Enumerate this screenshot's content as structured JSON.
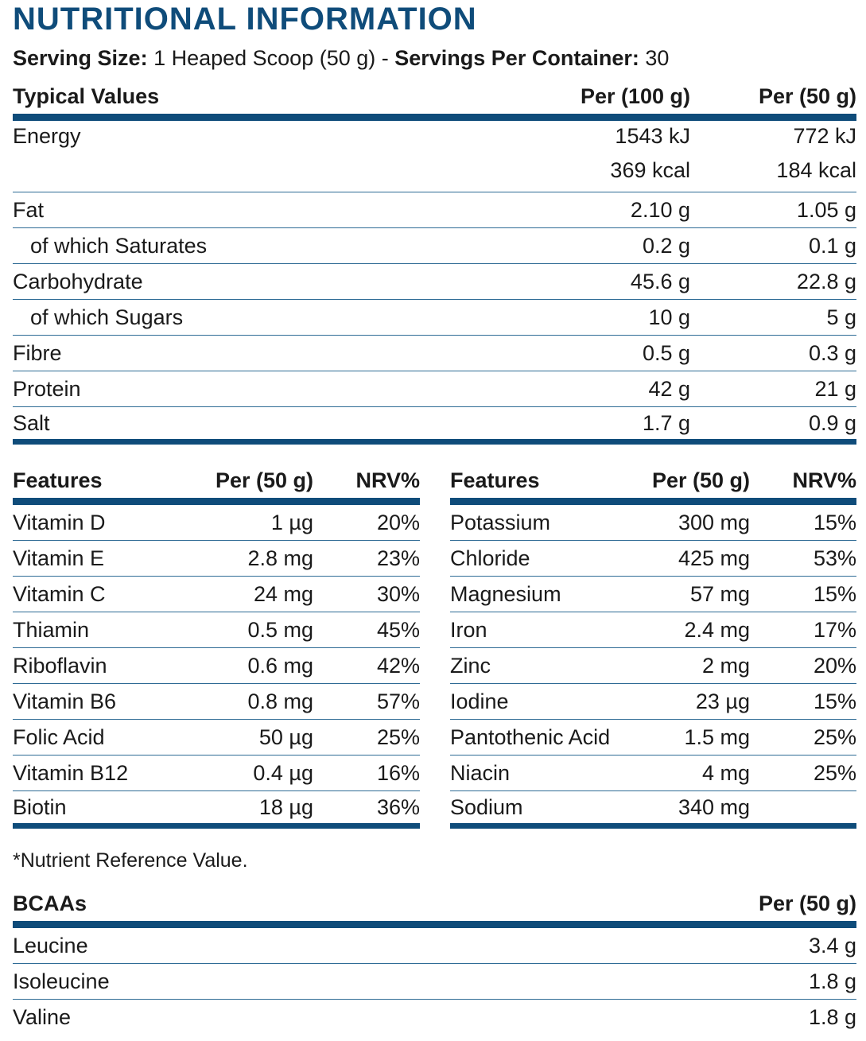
{
  "title": "NUTRITIONAL INFORMATION",
  "serving": {
    "size_label": "Serving Size:",
    "size_value": " 1 Heaped Scoop (50 g) - ",
    "per_container_label": "Servings Per Container:",
    "per_container_value": " 30"
  },
  "main_table": {
    "headers": [
      "Typical Values",
      "Per (100 g)",
      "Per (50 g)"
    ],
    "energy": {
      "label": "Energy",
      "per100": [
        "1543 kJ",
        "369 kcal"
      ],
      "per50": [
        "772 kJ",
        "184 kcal"
      ]
    },
    "rows": [
      {
        "label": "Fat",
        "per100": "2.10 g",
        "per50": "1.05 g",
        "indent": false
      },
      {
        "label": "of which Saturates",
        "per100": "0.2 g",
        "per50": "0.1 g",
        "indent": true
      },
      {
        "label": "Carbohydrate",
        "per100": "45.6 g",
        "per50": "22.8 g",
        "indent": false
      },
      {
        "label": "of which Sugars",
        "per100": "10 g",
        "per50": "5 g",
        "indent": true
      },
      {
        "label": "Fibre",
        "per100": "0.5 g",
        "per50": "0.3 g",
        "indent": false
      },
      {
        "label": "Protein",
        "per100": "42 g",
        "per50": "21 g",
        "indent": false
      },
      {
        "label": "Salt",
        "per100": "1.7 g",
        "per50": "0.9 g",
        "indent": false
      }
    ]
  },
  "features_left": {
    "headers": [
      "Features",
      "Per (50 g)",
      "NRV%"
    ],
    "rows": [
      [
        "Vitamin D",
        "1 µg",
        "20%"
      ],
      [
        "Vitamin E",
        "2.8 mg",
        "23%"
      ],
      [
        "Vitamin C",
        "24 mg",
        "30%"
      ],
      [
        "Thiamin",
        "0.5 mg",
        "45%"
      ],
      [
        "Riboflavin",
        "0.6 mg",
        "42%"
      ],
      [
        "Vitamin B6",
        "0.8 mg",
        "57%"
      ],
      [
        "Folic Acid",
        "50 µg",
        "25%"
      ],
      [
        "Vitamin B12",
        "0.4 µg",
        "16%"
      ],
      [
        "Biotin",
        "18 µg",
        "36%"
      ]
    ]
  },
  "features_right": {
    "headers": [
      "Features",
      "Per (50 g)",
      "NRV%"
    ],
    "rows": [
      [
        "Potassium",
        "300 mg",
        "15%"
      ],
      [
        "Chloride",
        "425 mg",
        "53%"
      ],
      [
        "Magnesium",
        "57 mg",
        "15%"
      ],
      [
        "Iron",
        "2.4 mg",
        "17%"
      ],
      [
        "Zinc",
        "2 mg",
        "20%"
      ],
      [
        "Iodine",
        "23 µg",
        "15%"
      ],
      [
        "Pantothenic Acid",
        "1.5 mg",
        "25%"
      ],
      [
        "Niacin",
        "4 mg",
        "25%"
      ],
      [
        "Sodium",
        "340 mg",
        ""
      ]
    ]
  },
  "footnote": "*Nutrient Reference Value.",
  "bcaa": {
    "headers": [
      "BCAAs",
      "Per (50 g)"
    ],
    "rows": [
      [
        "Leucine",
        "3.4 g"
      ],
      [
        "Isoleucine",
        "1.8 g"
      ],
      [
        "Valine",
        "1.8 g"
      ]
    ]
  }
}
